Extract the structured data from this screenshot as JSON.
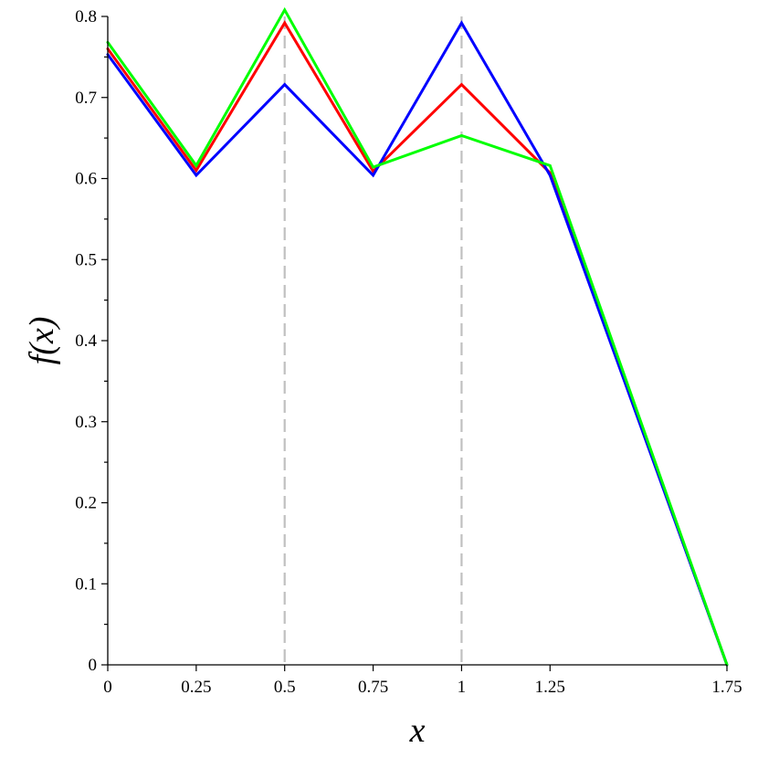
{
  "chart_data": {
    "type": "line",
    "title": "",
    "xlabel": "x",
    "ylabel": "f(x)",
    "xlim": [
      0,
      1.75
    ],
    "ylim": [
      0,
      0.8
    ],
    "x_ticks": [
      0,
      0.25,
      0.5,
      0.75,
      1,
      1.25,
      1.75
    ],
    "x_tick_labels": [
      "0",
      "0.25",
      "0.5",
      "0.75",
      "1",
      "1.25",
      "1.75"
    ],
    "y_ticks": [
      0,
      0.1,
      0.2,
      0.3,
      0.4,
      0.5,
      0.6,
      0.7,
      0.8
    ],
    "y_tick_labels": [
      "0",
      "0.1",
      "0.2",
      "0.3",
      "0.4",
      "0.5",
      "0.6",
      "0.7",
      "0.8"
    ],
    "y_minor_step": 0.05,
    "grid": false,
    "legend": "none",
    "reference_lines_x": [
      0.5,
      1
    ],
    "reference_line_color": "#c0c0c0",
    "series": [
      {
        "color": "#ff0000",
        "x": [
          0,
          0.25,
          0.5,
          0.75,
          1,
          1.25,
          1.75
        ],
        "y": [
          0.76,
          0.61,
          0.792,
          0.609,
          0.716,
          0.607,
          0
        ]
      },
      {
        "color": "#0000ff",
        "x": [
          0,
          0.25,
          0.5,
          0.75,
          1,
          1.25,
          1.75
        ],
        "y": [
          0.753,
          0.604,
          0.716,
          0.604,
          0.792,
          0.604,
          0
        ]
      },
      {
        "color": "#00ff00",
        "x": [
          0,
          0.25,
          0.5,
          0.75,
          1,
          1.25,
          1.75
        ],
        "y": [
          0.768,
          0.616,
          0.808,
          0.614,
          0.653,
          0.616,
          0
        ]
      }
    ]
  }
}
